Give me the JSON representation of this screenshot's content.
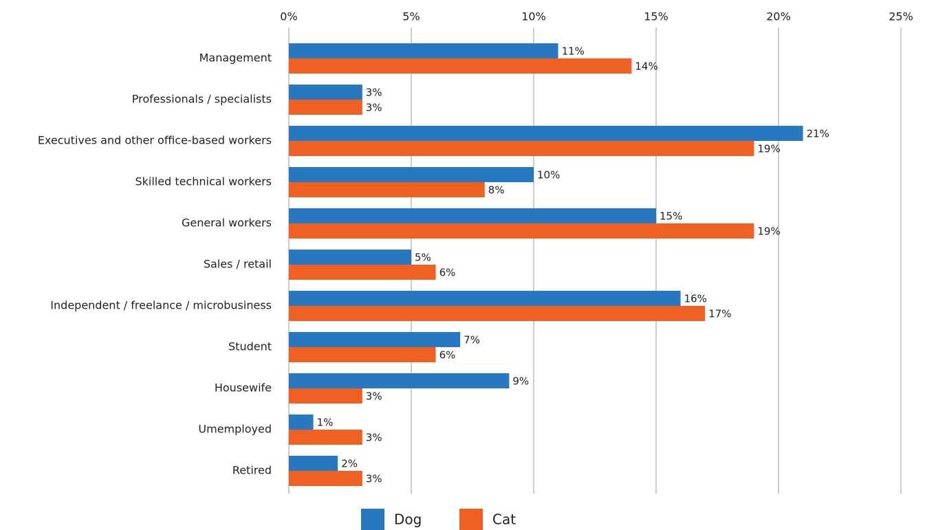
{
  "chart_data": {
    "type": "bar",
    "orientation": "horizontal",
    "categories": [
      "Management",
      "Professionals / specialists",
      "Executives and other office-based workers",
      "Skilled technical workers",
      "General workers",
      "Sales / retail",
      "Independent / freelance / microbusiness",
      "Student",
      "Housewife",
      "Umemployed",
      "Retired"
    ],
    "series": [
      {
        "name": "Dog",
        "color": "#2878c0",
        "values": [
          11,
          3,
          21,
          10,
          15,
          5,
          16,
          7,
          9,
          1,
          2
        ],
        "value_labels": [
          "11%",
          "3%",
          "21%",
          "10%",
          "15%",
          "5%",
          "16%",
          "7%",
          "9%",
          "1%",
          "2%"
        ]
      },
      {
        "name": "Cat",
        "color": "#f06022",
        "values": [
          14,
          3,
          19,
          8,
          19,
          6,
          17,
          6,
          3,
          3,
          3
        ],
        "value_labels": [
          "14%",
          "3%",
          "19%",
          "8%",
          "19%",
          "6%",
          "17%",
          "6%",
          "3%",
          "3%",
          "3%"
        ]
      }
    ],
    "xlim": [
      0,
      25
    ],
    "xticks": [
      {
        "value": 0,
        "label": "0%"
      },
      {
        "value": 5,
        "label": "5%"
      },
      {
        "value": 10,
        "label": "10%"
      },
      {
        "value": 15,
        "label": "15%"
      },
      {
        "value": 20,
        "label": "20%"
      },
      {
        "value": 25,
        "label": "25%"
      }
    ],
    "grid": true,
    "legend": "bottom"
  }
}
